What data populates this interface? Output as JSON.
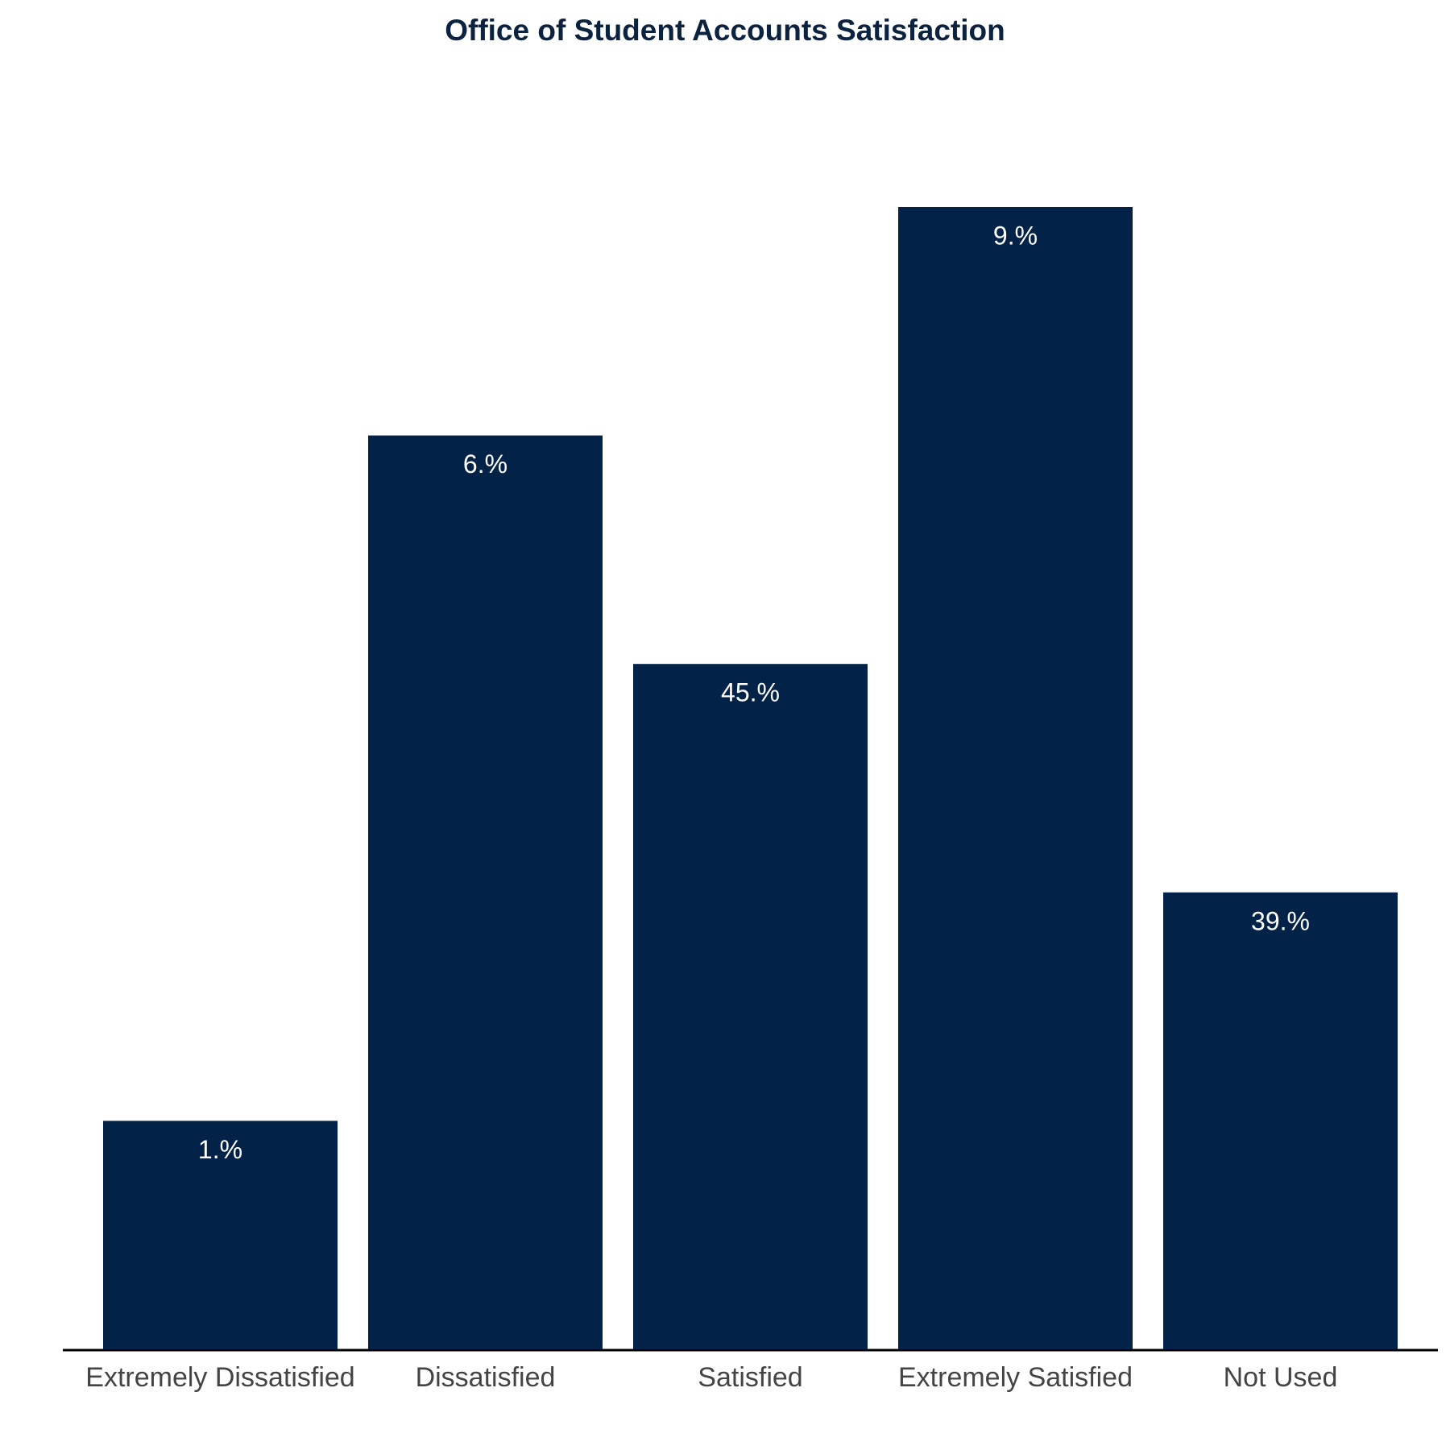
{
  "chart_data": {
    "type": "bar",
    "title": "Office of Student Accounts Satisfaction",
    "categories": [
      "Extremely Dissatisfied",
      "Dissatisfied",
      "Satisfied",
      "Extremely Satisfied",
      "Not Used"
    ],
    "values": [
      1,
      4,
      3,
      5,
      2
    ],
    "annotations": [
      "1.%",
      "6.%",
      "45.%",
      "9.%",
      "39.%"
    ],
    "color": "#032248"
  }
}
